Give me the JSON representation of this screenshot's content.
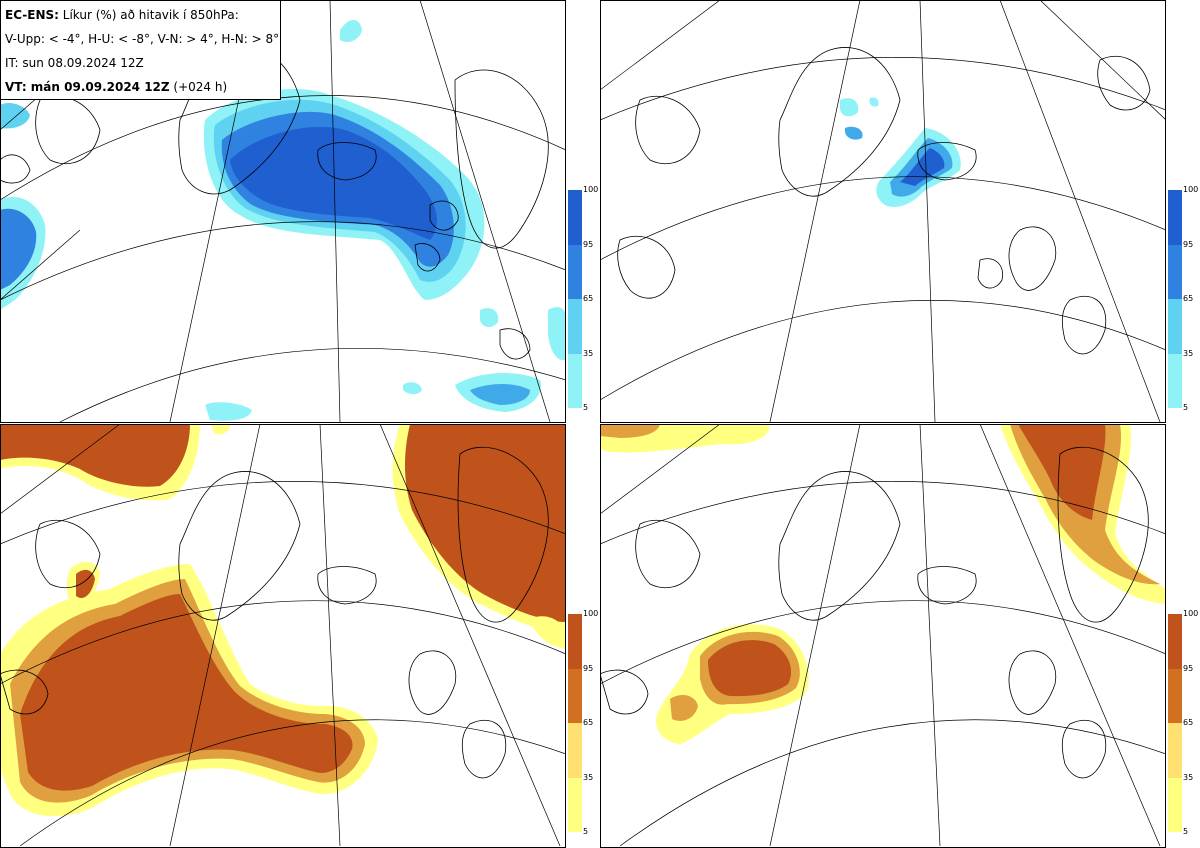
{
  "legend": {
    "line1_bold": "EC-ENS:",
    "line1_rest": " Líkur (%) að hitavik í 850hPa:",
    "line2": "V-Upp: < -4°, H-U: < -8°, V-N: > 4°, H-N: > 8°",
    "line3": "IT: sun 08.09.2024 12Z",
    "line4_bold": "VT: mán 09.09.2024 12Z",
    "line4_rest": " (+024 h)"
  },
  "colorbar_ticks": [
    "100",
    "95",
    "65",
    "35",
    "5"
  ],
  "colors": {
    "cold": [
      "#8ff2f7",
      "#5fd2f2",
      "#3fa9ea",
      "#2f82e0",
      "#1f5fd0"
    ],
    "warm": [
      "#ffff80",
      "#ffe070",
      "#e0a040",
      "#d07020",
      "#c0531b"
    ]
  },
  "panels": [
    {
      "name": "cold-below-minus4",
      "scheme": "cold"
    },
    {
      "name": "cold-below-minus8",
      "scheme": "cold"
    },
    {
      "name": "warm-above-4",
      "scheme": "warm"
    },
    {
      "name": "warm-above-8",
      "scheme": "warm"
    }
  ]
}
